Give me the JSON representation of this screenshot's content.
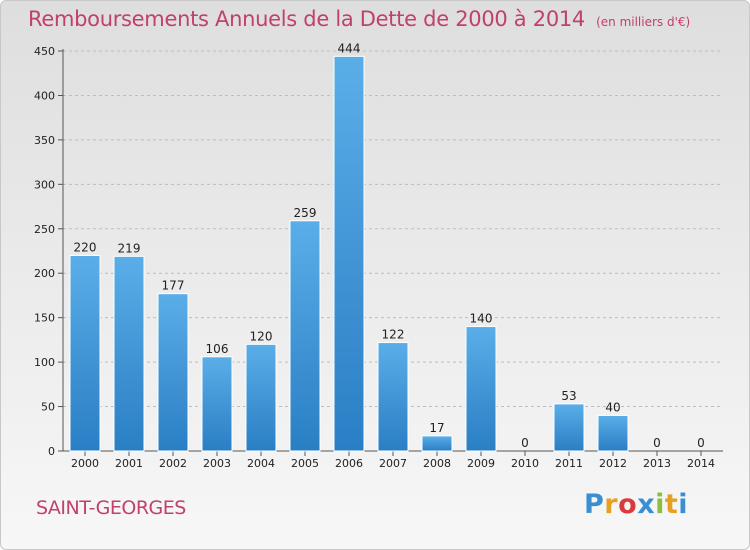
{
  "header": {
    "title": "Remboursements Annuels de la Dette de 2000 à 2014",
    "unit": "(en milliers d'€)"
  },
  "footer": {
    "commune": "SAINT-GEORGES",
    "logo_letters": [
      "P",
      "r",
      "o",
      "x",
      "i",
      "t",
      "i"
    ],
    "logo_colors": [
      "#3a8fd0",
      "#e8a020",
      "#d93a3a",
      "#3a8fd0",
      "#8cbf3f",
      "#e8a020",
      "#3a8fd0"
    ]
  },
  "chart_data": {
    "type": "bar",
    "categories": [
      "2000",
      "2001",
      "2002",
      "2003",
      "2004",
      "2005",
      "2006",
      "2007",
      "2008",
      "2009",
      "2010",
      "2011",
      "2012",
      "2013",
      "2014"
    ],
    "values": [
      220,
      219,
      177,
      106,
      120,
      259,
      444,
      122,
      17,
      140,
      0,
      53,
      40,
      0,
      0
    ],
    "title": "Remboursements Annuels de la Dette de 2000 à 2014",
    "xlabel": "",
    "ylabel": "",
    "ylim": [
      0,
      450
    ],
    "yticks": [
      0,
      50,
      100,
      150,
      200,
      250,
      300,
      350,
      400,
      450
    ],
    "grid": true,
    "bar_color_top": "#5aaee8",
    "bar_color_bottom": "#2a7ec4"
  }
}
